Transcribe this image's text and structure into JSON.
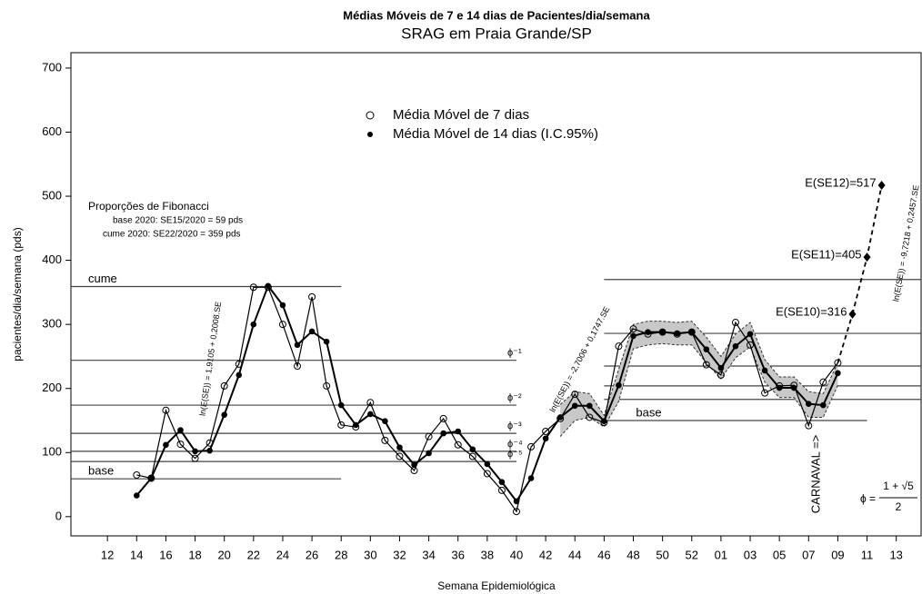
{
  "chart_data": {
    "type": "line",
    "title": "Médias Móveis de 7 e 14 dias de Pacientes/dia/semana",
    "subtitle": "SRAG em Praia Grande/SP",
    "xlabel": "Semana Epidemiológica",
    "ylabel": "pacientes/dia/semana (pds)",
    "xlim": [
      9.5,
      67.7
    ],
    "ylim": [
      -30,
      724
    ],
    "yticks": [
      0,
      100,
      200,
      300,
      400,
      500,
      600,
      700
    ],
    "xticks": [
      12,
      14,
      16,
      18,
      20,
      22,
      24,
      26,
      28,
      30,
      32,
      34,
      36,
      38,
      40,
      42,
      44,
      46,
      48,
      50,
      52,
      {
        "value": 54,
        "label": "01"
      },
      {
        "value": 56,
        "label": "03"
      },
      {
        "value": 58,
        "label": "05"
      },
      {
        "value": 60,
        "label": "07"
      },
      {
        "value": 62,
        "label": "09"
      },
      {
        "value": 64,
        "label": "11"
      },
      {
        "value": 66,
        "label": "13"
      }
    ],
    "x": [
      14,
      15,
      16,
      17,
      18,
      19,
      20,
      21,
      22,
      23,
      24,
      25,
      26,
      27,
      28,
      29,
      30,
      31,
      32,
      33,
      34,
      35,
      36,
      37,
      38,
      39,
      40,
      41,
      42,
      43,
      44,
      45,
      46,
      47,
      48,
      49,
      50,
      51,
      52,
      53,
      54,
      55,
      56,
      57,
      58,
      59,
      60,
      61,
      62
    ],
    "series": [
      {
        "name": "Média Móvel de 7 dias",
        "color": "#000000",
        "marker": "open",
        "values": [
          65,
          60,
          166,
          113,
          91,
          115,
          204,
          238,
          358,
          358,
          300,
          235,
          343,
          204,
          143,
          140,
          178,
          119,
          94,
          72,
          125,
          153,
          112,
          94,
          67,
          41,
          8,
          109,
          133,
          153,
          191,
          155,
          147,
          266,
          293,
          285,
          288,
          285,
          288,
          237,
          221,
          303,
          268,
          193,
          204,
          205,
          142,
          210,
          240
        ]
      },
      {
        "name": "Média Móvel de 14 dias (I.C.95%)",
        "color": "#000000",
        "marker": "filled",
        "values": [
          33,
          60,
          112,
          135,
          102,
          103,
          159,
          221,
          300,
          360,
          330,
          268,
          289,
          273,
          174,
          143,
          160,
          149,
          108,
          81,
          99,
          130,
          133,
          105,
          82,
          54,
          24,
          60,
          122,
          155,
          173,
          173,
          149,
          205,
          282,
          288,
          288,
          286,
          288,
          261,
          232,
          266,
          285,
          228,
          201,
          201,
          176,
          174,
          224
        ]
      }
    ],
    "band": {
      "color": "#c8c8c8",
      "x": [
        43,
        44,
        45,
        46,
        47,
        48,
        49,
        50,
        51,
        52,
        53,
        54,
        55,
        56,
        57,
        58,
        59,
        60,
        61,
        62
      ],
      "lower": [
        125,
        150,
        155,
        140,
        180,
        262,
        268,
        270,
        268,
        268,
        240,
        215,
        248,
        265,
        210,
        186,
        186,
        155,
        155,
        205
      ],
      "upper": [
        175,
        195,
        192,
        158,
        230,
        300,
        305,
        305,
        303,
        305,
        280,
        250,
        285,
        303,
        245,
        218,
        218,
        195,
        192,
        240
      ]
    },
    "projection": {
      "x": [
        63,
        64,
        65
      ],
      "values": [
        316,
        405,
        517
      ],
      "value_labels": [
        "E(SE10)=316",
        "E(SE11)=405",
        "E(SE12)=517"
      ]
    },
    "levels": [
      {
        "value": 359,
        "label": "cume",
        "x": [
          9.5,
          28
        ]
      },
      {
        "value": 59,
        "label": "base",
        "x": [
          9.5,
          28
        ]
      },
      {
        "value": 244,
        "label": "ϕ⁻¹",
        "x": [
          9.5,
          40
        ]
      },
      {
        "value": 174,
        "label": "ϕ⁻²",
        "x": [
          9.5,
          40
        ]
      },
      {
        "value": 130,
        "label": "ϕ⁻³",
        "x": [
          9.5,
          40
        ]
      },
      {
        "value": 102,
        "label": "ϕ⁻⁴",
        "x": [
          9.5,
          40
        ]
      },
      {
        "value": 86,
        "label": "ϕ⁻⁵",
        "x": [
          9.5,
          40
        ]
      },
      {
        "value": 370,
        "x": [
          46,
          67.7
        ]
      },
      {
        "value": 286,
        "x": [
          46,
          67.7
        ]
      },
      {
        "value": 235,
        "x": [
          46,
          67.7
        ]
      },
      {
        "value": 204,
        "x": [
          46,
          67.7
        ]
      },
      {
        "value": 183,
        "x": [
          46,
          67.7
        ]
      },
      {
        "value": 150,
        "label": "base",
        "x": [
          46,
          64
        ]
      }
    ],
    "fibonacci": {
      "title": "Proporções de Fibonacci",
      "base": "base 2020: SE15/2020 = 59 pds",
      "cume": "cume 2020: SE22/2020 = 359 pds"
    },
    "regressions": [
      "ln(E(SE)) = 1,9105 + 0,2008.SE",
      "ln(E(SE)) = -2,7006 + 0,1747.SE",
      "ln(E(SE)) = -9,7218 + 0,2457.SE"
    ],
    "carnaval": "CARNAVAL =>",
    "phi_formula": {
      "lhs": "ϕ =",
      "numerator": "1 + √5",
      "denominator": "2"
    }
  }
}
